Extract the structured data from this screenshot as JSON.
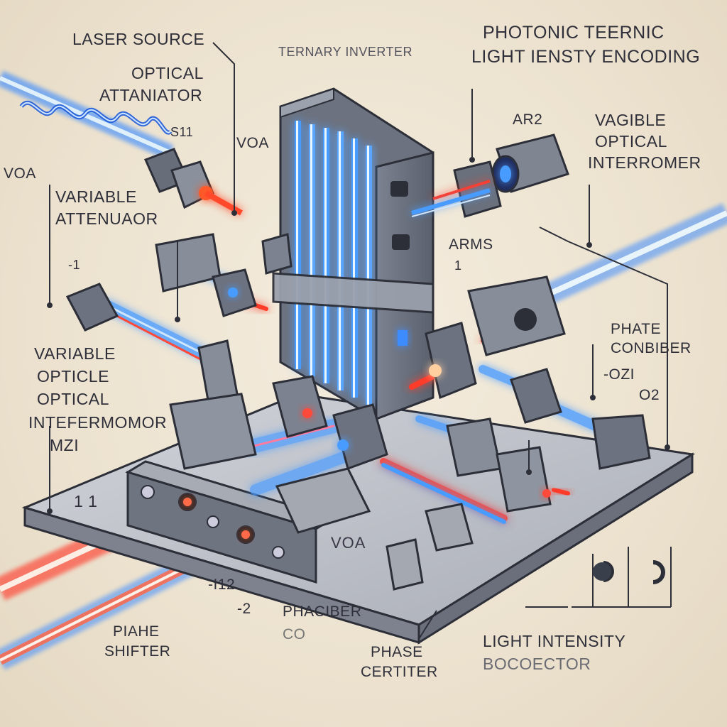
{
  "title": {
    "line1": "PHOTONIC TEERNIC",
    "line2": "LIGHT IENSTY ENCODING"
  },
  "labels": {
    "laser_source": "LASER SOURCE",
    "ternary_inverter": "TERNARY INVERTER",
    "optical_attenuator": [
      "OPTICAL",
      "ATTANIATOR"
    ],
    "num_s11": "S11",
    "voa_top": "VOA",
    "voa_left": "VOA",
    "variable_attenuator": [
      "VARIABLE",
      "ATTENUAOR"
    ],
    "minus_1": "-1",
    "variable_opticle": [
      "VARIABLE",
      "OPTICLE",
      "OPTICAL",
      "INTEFERMOMOR",
      "MZI"
    ],
    "num_1_1": "1 1",
    "ar2": "AR2",
    "vagible_optical": [
      "VAGIBLE",
      "OPTICAL",
      "INTERROMER"
    ],
    "arms": "ARMS",
    "num_1": "1",
    "phase_combiner": [
      "PHATE",
      "CONBIBER"
    ],
    "ozi": "-OZI",
    "o2": "O2",
    "voa_plate": "VOA",
    "num_12": "-I12",
    "num_2": "-2",
    "phaciber": [
      "PHACIBER",
      "CO"
    ],
    "phase_shifter_left": [
      "PIAHE",
      "SHIFTER"
    ],
    "phase_certiter": [
      "PHASE",
      "CERTITER"
    ],
    "light_intensity": [
      "LIGHT INTENSITY",
      "BOCOECTOR"
    ]
  },
  "colors": {
    "laser_red": "#ff3a2a",
    "laser_blue": "#2a7dff",
    "metal": "#8f96a3",
    "metal_dark": "#5d6370",
    "plate": "#b9bcc4",
    "background": "#efe6d6"
  }
}
